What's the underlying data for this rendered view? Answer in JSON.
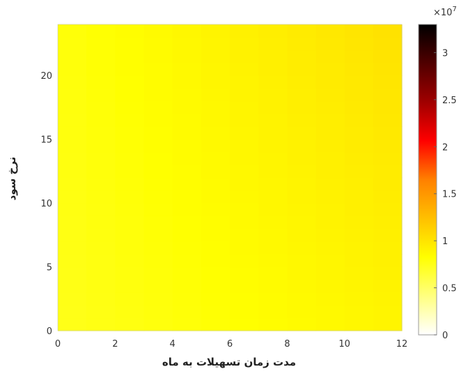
{
  "chart_data": {
    "type": "heatmap",
    "xlabel": "مدت زمان تسهیلات به ماه",
    "ylabel": "نرخ سود",
    "xlim": [
      0,
      12
    ],
    "ylim": [
      0,
      24
    ],
    "x_ticks": [
      "0",
      "2",
      "4",
      "6",
      "8",
      "10",
      "12"
    ],
    "y_ticks": [
      "0",
      "5",
      "10",
      "15",
      "20"
    ],
    "grid": false,
    "colormap": "hot-reversed",
    "colorbar": {
      "range": [
        0,
        3.3
      ],
      "ticks": [
        "0",
        "0.5",
        "1",
        "1.5",
        "2",
        "2.5",
        "3"
      ],
      "exponent_label": "×10",
      "exponent_power": "7"
    },
    "x_bins": [
      0,
      1,
      2,
      3,
      4,
      5,
      6,
      7,
      8,
      9,
      10,
      11
    ],
    "y_bins": [
      0,
      1,
      2,
      3,
      4,
      5,
      6,
      7,
      8,
      9,
      10,
      11,
      12,
      13,
      14,
      15,
      16,
      17,
      18,
      19,
      20,
      21,
      22,
      23
    ],
    "value_model": {
      "base": 0.75,
      "x_coef": 0.0125,
      "y_coef": 0.0021,
      "xy_coef": 0.0003,
      "unit": "×10^7"
    },
    "colors": {
      "cmap": [
        "#ffffff",
        "#ffff80",
        "#ffff00",
        "#ffc000",
        "#ff8000",
        "#ff0000",
        "#a00000",
        "#500000",
        "#000000"
      ]
    }
  }
}
